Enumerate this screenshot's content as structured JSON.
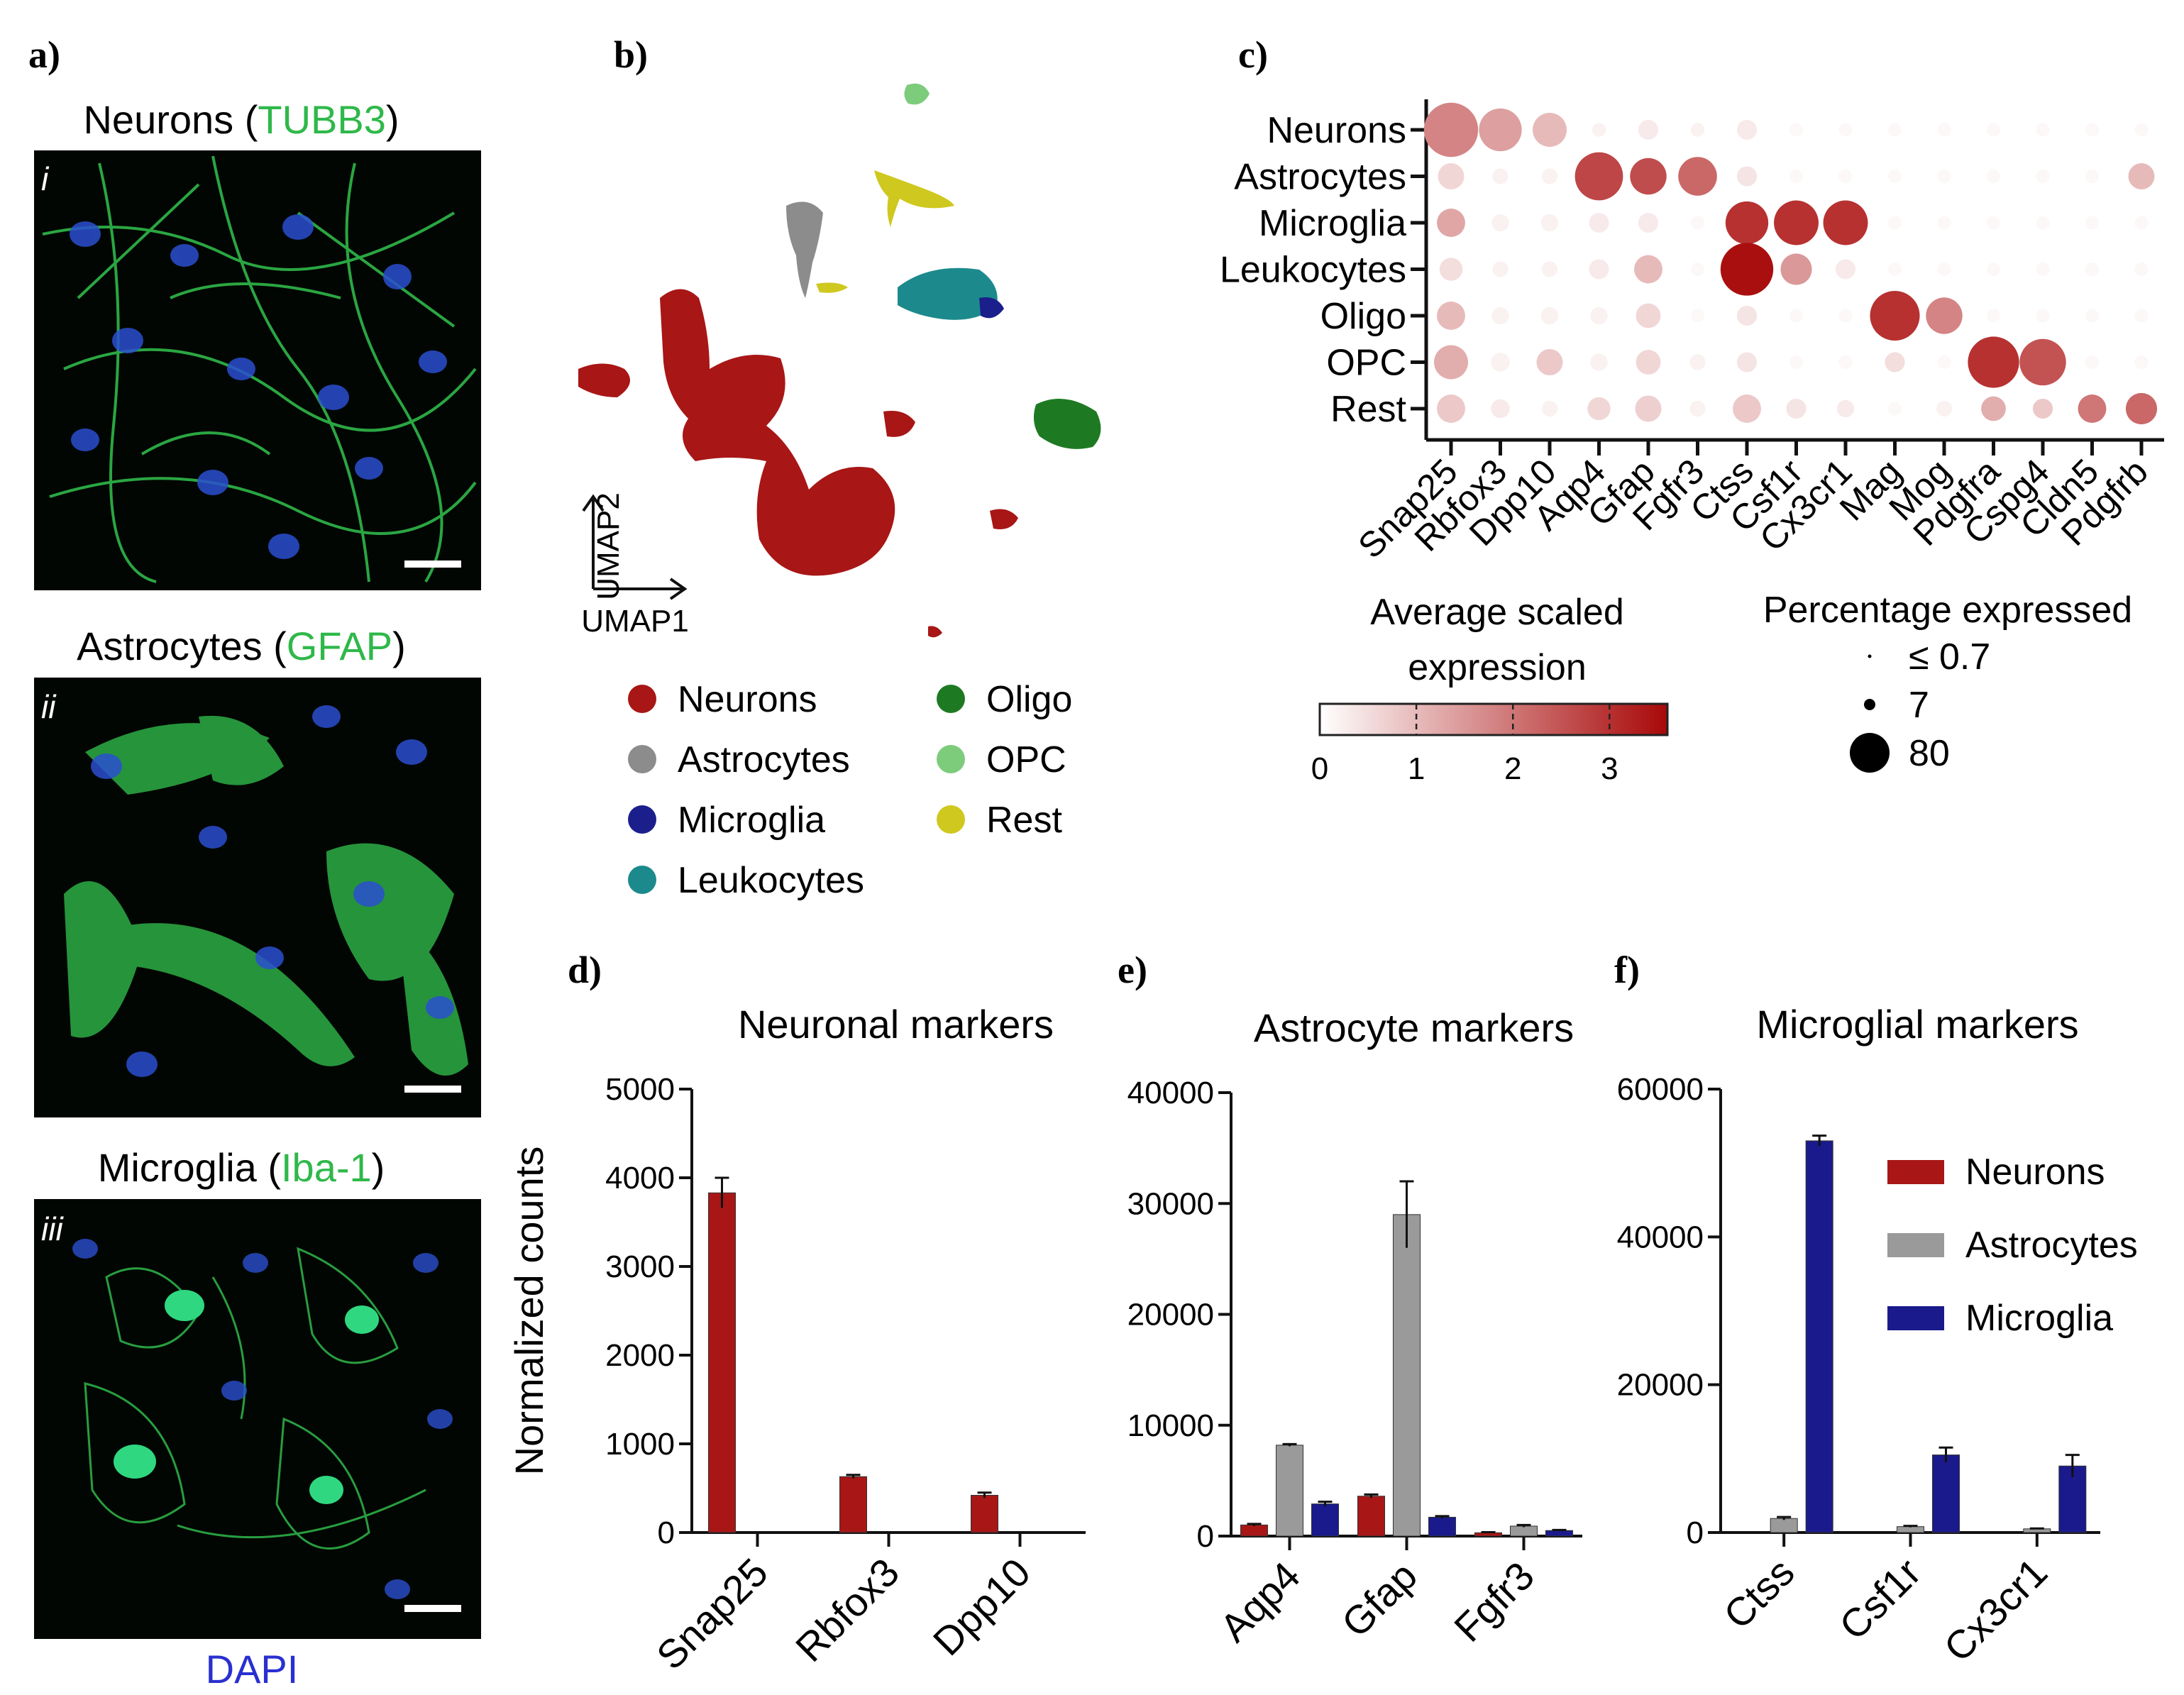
{
  "panels": {
    "a": {
      "label": "a)",
      "images": [
        {
          "roman": "i",
          "title_pre": "Neurons (",
          "marker": "TUBB3",
          "title_post": ")"
        },
        {
          "roman": "ii",
          "title_pre": "Astrocytes (",
          "marker": "GFAP",
          "title_post": ")"
        },
        {
          "roman": "iii",
          "title_pre": "Microglia (",
          "marker": "Iba-1",
          "title_post": ")"
        }
      ],
      "dapi_label": "DAPI",
      "marker_color": "#2fb84a",
      "dapi_color": "#2a2fd0"
    },
    "b": {
      "label": "b)",
      "axis_x": "UMAP1",
      "axis_y": "UMAP2",
      "legend": [
        {
          "name": "Neurons",
          "color": "#a81616"
        },
        {
          "name": "Astrocytes",
          "color": "#8c8c8c"
        },
        {
          "name": "Microglia",
          "color": "#1b1f8c"
        },
        {
          "name": "Leukocytes",
          "color": "#1c8a8c"
        },
        {
          "name": "Oligo",
          "color": "#1e7a22"
        },
        {
          "name": "OPC",
          "color": "#7ccc7c"
        },
        {
          "name": "Rest",
          "color": "#cfc81e"
        }
      ]
    },
    "c": {
      "label": "c)",
      "size_legend_title": "Percentage expressed",
      "size_legend": [
        {
          "label": "≤ 0.7",
          "pct": 0.7
        },
        {
          "label": "7",
          "pct": 7
        },
        {
          "label": "80",
          "pct": 80
        }
      ],
      "color_legend_title_1": "Average scaled",
      "color_legend_title_2": "expression",
      "color_legend_ticks": [
        "0",
        "1",
        "2",
        "3"
      ],
      "color_low": "#ffffff",
      "color_high": "#a80808"
    },
    "d": {
      "label": "d)"
    },
    "e": {
      "label": "e)"
    },
    "f": {
      "label": "f)"
    }
  },
  "chart_data": [
    {
      "type": "scatter",
      "panel": "c",
      "title": "",
      "rows": [
        "Neurons",
        "Astrocytes",
        "Microglia",
        "Leukocytes",
        "Oligo",
        "OPC",
        "Rest"
      ],
      "genes": [
        "Snap25",
        "Rbfox3",
        "Dpp10",
        "Aqp4",
        "Gfap",
        "Fgfr3",
        "Ctss",
        "Csf1r",
        "Cx3cr1",
        "Mag",
        "Mog",
        "Pdgfra",
        "Cspg4",
        "Cldn5",
        "Pdgfrb"
      ],
      "pct_expressed": [
        [
          80,
          45,
          25,
          1,
          5,
          1,
          5,
          1,
          1,
          1,
          1,
          1,
          1,
          1,
          1
        ],
        [
          12,
          2,
          2,
          60,
          30,
          35,
          5,
          1,
          1,
          1,
          1,
          1,
          1,
          1,
          12
        ],
        [
          15,
          3,
          3,
          5,
          5,
          1,
          45,
          50,
          50,
          1,
          1,
          1,
          1,
          1,
          1
        ],
        [
          8,
          2,
          2,
          5,
          15,
          1,
          75,
          20,
          5,
          1,
          1,
          1,
          1,
          1,
          1
        ],
        [
          15,
          3,
          3,
          3,
          10,
          1,
          5,
          1,
          1,
          65,
          30,
          1,
          1,
          1,
          1
        ],
        [
          25,
          4,
          12,
          3,
          10,
          2,
          5,
          1,
          1,
          5,
          1,
          70,
          55,
          1,
          1
        ],
        [
          15,
          4,
          2,
          8,
          12,
          2,
          15,
          5,
          3,
          1,
          2,
          10,
          5,
          15,
          20
        ]
      ],
      "avg_expression": [
        [
          1.8,
          1.4,
          1.0,
          0.2,
          0.3,
          0.2,
          0.3,
          0.1,
          0.1,
          0.1,
          0.1,
          0.1,
          0.1,
          0.1,
          0.1
        ],
        [
          0.6,
          0.2,
          0.2,
          2.7,
          2.6,
          2.2,
          0.4,
          0.1,
          0.1,
          0.1,
          0.1,
          0.1,
          0.1,
          0.1,
          1.0
        ],
        [
          1.3,
          0.2,
          0.2,
          0.3,
          0.3,
          0.1,
          3.0,
          3.0,
          3.0,
          0.1,
          0.1,
          0.1,
          0.1,
          0.1,
          0.1
        ],
        [
          0.5,
          0.2,
          0.2,
          0.3,
          1.0,
          0.1,
          3.5,
          1.5,
          0.3,
          0.1,
          0.1,
          0.1,
          0.1,
          0.1,
          0.1
        ],
        [
          1.0,
          0.2,
          0.2,
          0.2,
          0.6,
          0.1,
          0.4,
          0.1,
          0.1,
          3.0,
          1.8,
          0.1,
          0.1,
          0.1,
          0.1
        ],
        [
          1.2,
          0.2,
          0.8,
          0.2,
          0.6,
          0.2,
          0.4,
          0.1,
          0.1,
          0.5,
          0.1,
          3.0,
          2.5,
          0.1,
          0.1
        ],
        [
          0.8,
          0.3,
          0.2,
          0.6,
          0.7,
          0.2,
          0.8,
          0.4,
          0.3,
          0.1,
          0.2,
          1.2,
          0.8,
          2.0,
          2.2
        ]
      ]
    },
    {
      "type": "bar",
      "panel": "d",
      "title": "Neuronal markers",
      "ylabel": "Normalized counts",
      "categories": [
        "Snap25",
        "Rbfox3",
        "Dpp10"
      ],
      "series": [
        {
          "name": "Neurons",
          "values": [
            3830,
            630,
            420
          ],
          "errors": [
            170,
            20,
            30
          ]
        },
        {
          "name": "Astrocytes",
          "values": [
            0,
            0,
            0
          ],
          "errors": [
            0,
            0,
            0
          ]
        },
        {
          "name": "Microglia",
          "values": [
            0,
            0,
            0
          ],
          "errors": [
            0,
            0,
            0
          ]
        }
      ],
      "ylim": [
        0,
        5000
      ],
      "yticks": [
        "0",
        "1000",
        "2000",
        "3000",
        "4000",
        "5000"
      ]
    },
    {
      "type": "bar",
      "panel": "e",
      "title": "Astrocyte markers",
      "ylabel": "",
      "categories": [
        "Aqp4",
        "Gfap",
        "Fgfr3"
      ],
      "series": [
        {
          "name": "Neurons",
          "values": [
            1000,
            3600,
            300
          ],
          "errors": [
            100,
            150,
            50
          ]
        },
        {
          "name": "Astrocytes",
          "values": [
            8200,
            29000,
            900
          ],
          "errors": [
            100,
            3000,
            100
          ]
        },
        {
          "name": "Microglia",
          "values": [
            2900,
            1700,
            500
          ],
          "errors": [
            200,
            100,
            50
          ]
        }
      ],
      "ylim": [
        0,
        40000
      ],
      "yticks": [
        "0",
        "10000",
        "20000",
        "30000",
        "40000"
      ]
    },
    {
      "type": "bar",
      "panel": "f",
      "title": "Microglial markers",
      "ylabel": "",
      "categories": [
        "Ctss",
        "Csf1r",
        "Cx3cr1"
      ],
      "series": [
        {
          "name": "Neurons",
          "values": [
            0,
            0,
            0
          ],
          "errors": [
            0,
            0,
            0
          ]
        },
        {
          "name": "Astrocytes",
          "values": [
            1900,
            800,
            500
          ],
          "errors": [
            200,
            100,
            50
          ]
        },
        {
          "name": "Microglia",
          "values": [
            53000,
            10500,
            9000
          ],
          "errors": [
            700,
            1000,
            1500
          ]
        }
      ],
      "ylim": [
        0,
        60000
      ],
      "yticks": [
        "0",
        "20000",
        "40000",
        "60000"
      ],
      "legend": [
        "Neurons",
        "Astrocytes",
        "Microglia"
      ]
    }
  ],
  "bar_colors": {
    "Neurons": "#a81616",
    "Astrocytes": "#9a9a9a",
    "Microglia": "#1a1a8c"
  }
}
